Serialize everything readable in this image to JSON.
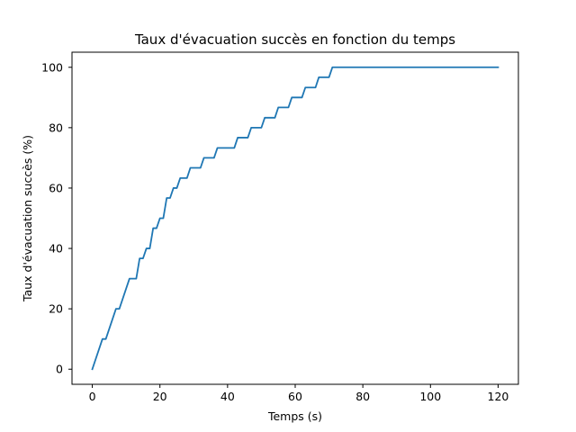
{
  "chart_data": {
    "type": "line",
    "title": "Taux d'évacuation succès en fonction du temps",
    "xlabel": "Temps (s)",
    "ylabel": "Taux d'évacuation succès (%)",
    "xlim": [
      -6,
      126
    ],
    "ylim": [
      -5,
      105
    ],
    "xticks": [
      0,
      20,
      40,
      60,
      80,
      100,
      120
    ],
    "yticks": [
      0,
      20,
      40,
      60,
      80,
      100
    ],
    "grid": false,
    "series": [
      {
        "color": "#1f77b4",
        "x": [
          0,
          3,
          4,
          7,
          8,
          11,
          13,
          14,
          15,
          16,
          17,
          18,
          19,
          20,
          21,
          22,
          23,
          24,
          25,
          26,
          28,
          29,
          32,
          33,
          36,
          37,
          42,
          43,
          46,
          47,
          50,
          51,
          54,
          55,
          58,
          59,
          62,
          63,
          66,
          67,
          70,
          71,
          120
        ],
        "y": [
          0,
          10,
          10,
          20,
          20,
          30,
          30,
          36.7,
          36.7,
          40,
          40,
          46.7,
          46.7,
          50,
          50,
          56.7,
          56.7,
          60,
          60,
          63.3,
          63.3,
          66.7,
          66.7,
          70,
          70,
          73.3,
          73.3,
          76.7,
          76.7,
          80,
          80,
          83.3,
          83.3,
          86.7,
          86.7,
          90,
          90,
          93.3,
          93.3,
          96.7,
          96.7,
          100,
          100
        ]
      }
    ]
  }
}
